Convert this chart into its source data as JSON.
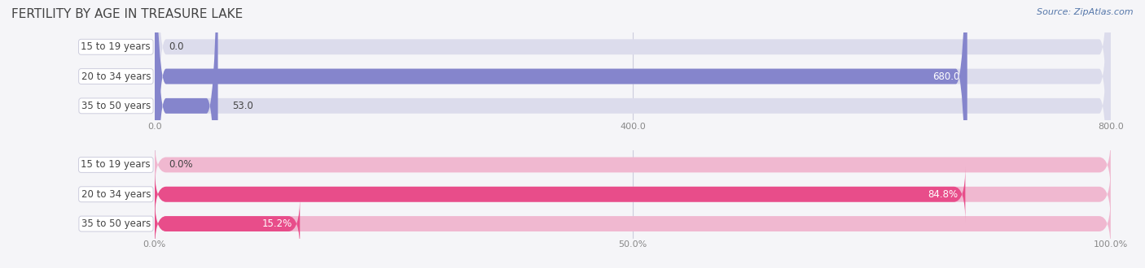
{
  "title": "FERTILITY BY AGE IN TREASURE LAKE",
  "source": "Source: ZipAtlas.com",
  "top_chart": {
    "categories": [
      "15 to 19 years",
      "20 to 34 years",
      "35 to 50 years"
    ],
    "values": [
      0.0,
      680.0,
      53.0
    ],
    "xlim": [
      0,
      800
    ],
    "xticks": [
      0.0,
      400.0,
      800.0
    ],
    "xtick_labels": [
      "0.0",
      "400.0",
      "800.0"
    ],
    "bar_color": "#8585cc",
    "bar_bg_color": "#dcdcec"
  },
  "bottom_chart": {
    "categories": [
      "15 to 19 years",
      "20 to 34 years",
      "35 to 50 years"
    ],
    "values": [
      0.0,
      84.8,
      15.2
    ],
    "xlim": [
      0,
      100
    ],
    "xticks": [
      0.0,
      50.0,
      100.0
    ],
    "xtick_labels": [
      "0.0%",
      "50.0%",
      "100.0%"
    ],
    "bar_color": "#e84d8a",
    "bar_bg_color": "#f0b8d0"
  },
  "fig_bg_color": "#f5f5f8",
  "title_color": "#444444",
  "tick_color": "#888888",
  "source_color": "#5577aa",
  "label_text_color": "#444444",
  "label_box_facecolor": "#ffffff",
  "label_box_edgecolor": "#ccccdd",
  "value_label_color_inside": "#ffffff",
  "value_label_color_outside": "#444444",
  "gridline_color": "#ccccdd",
  "title_fontsize": 11,
  "source_fontsize": 8,
  "cat_fontsize": 8.5,
  "val_fontsize": 8.5,
  "tick_fontsize": 8
}
